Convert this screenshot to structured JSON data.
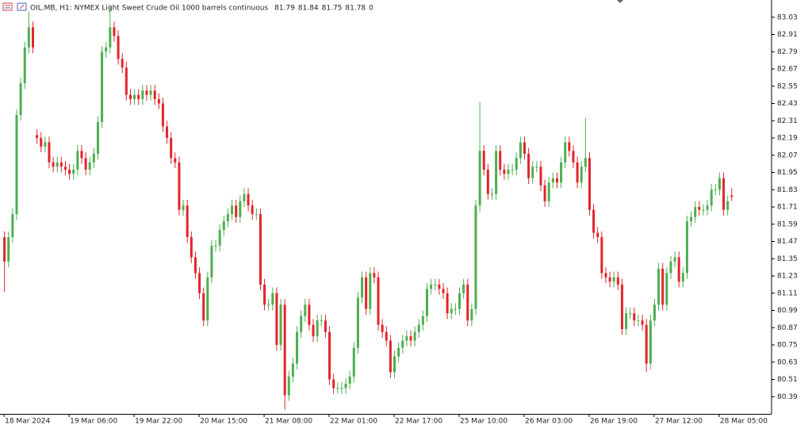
{
  "chart_data": {
    "type": "candlestick",
    "title": "OIL.MB, H1:  NYMEX Light Sweet Crude Oil 1000 barrels continuous",
    "header_values": [
      81.79,
      81.84,
      81.75,
      81.78,
      0
    ],
    "up_color": "#4caf50",
    "down_color": "#e3242b",
    "open": [
      81.5,
      81.33,
      81.5,
      81.66,
      82.35,
      82.57,
      82.82,
      82.96,
      82.21,
      82.19,
      82.13,
      82.16,
      82.02,
      81.99,
      82.02,
      81.99,
      81.97,
      81.94,
      81.97,
      82.1,
      82.05,
      81.97,
      82.02,
      82.08,
      82.3,
      82.79,
      82.82,
      82.96,
      82.9,
      82.74,
      82.68,
      82.49,
      82.46,
      82.49,
      82.46,
      82.52,
      82.49,
      82.52,
      82.46,
      82.43,
      82.27,
      82.19,
      82.05,
      82.02,
      81.69,
      81.72,
      81.5,
      81.36,
      81.25,
      81.11,
      80.92,
      81.22,
      81.44,
      81.44,
      81.55,
      81.61,
      81.66,
      81.72,
      81.64,
      81.75,
      81.8,
      81.72,
      81.66,
      81.66,
      81.17,
      81.03,
      81.03,
      81.11,
      80.75,
      81.03,
      80.4,
      80.53,
      80.62,
      80.84,
      80.95,
      81.03,
      80.89,
      80.81,
      80.92,
      80.92,
      80.84,
      80.51,
      80.45,
      80.45,
      80.45,
      80.48,
      80.53,
      80.73,
      81.08,
      81.22,
      81.0,
      81.25,
      81.22,
      80.89,
      80.84,
      80.78,
      80.56,
      80.67,
      80.73,
      80.78,
      80.81,
      80.78,
      80.84,
      80.89,
      80.95,
      81.14,
      81.17,
      81.17,
      81.14,
      81.11,
      80.97,
      81.0,
      81.0,
      81.11,
      81.17,
      80.92,
      81.0,
      81.72,
      82.1,
      81.97,
      81.8,
      81.8,
      82.1,
      81.97,
      81.94,
      81.97,
      81.97,
      82.05,
      82.16,
      82.08,
      81.91,
      81.99,
      81.99,
      81.86,
      81.75,
      81.88,
      81.91,
      81.88,
      82.02,
      82.16,
      82.1,
      82.02,
      81.88,
      81.99,
      82.05,
      81.69,
      81.53,
      81.5,
      81.25,
      81.22,
      81.19,
      81.22,
      81.17,
      80.86,
      80.97,
      80.97,
      80.92,
      80.92,
      80.89,
      80.62,
      80.92,
      81.03,
      81.28,
      81.03,
      81.25,
      81.33,
      81.36,
      81.19,
      81.25,
      81.61,
      81.64,
      81.71,
      81.69,
      81.69,
      81.72,
      81.83,
      81.83,
      81.91,
      81.69,
      81.79
    ],
    "high": [
      81.54,
      81.54,
      81.7,
      82.39,
      82.61,
      82.86,
      83.07,
      83.0,
      82.25,
      82.23,
      82.2,
      82.2,
      82.06,
      82.06,
      82.06,
      82.03,
      82.01,
      82.01,
      82.14,
      82.14,
      82.09,
      82.06,
      82.12,
      82.34,
      82.83,
      82.86,
      83.12,
      83.0,
      82.94,
      82.78,
      82.72,
      82.53,
      82.53,
      82.53,
      82.56,
      82.56,
      82.56,
      82.56,
      82.5,
      82.47,
      82.31,
      82.23,
      82.09,
      82.06,
      81.76,
      81.76,
      81.54,
      81.4,
      81.29,
      81.15,
      81.26,
      81.48,
      81.48,
      81.59,
      81.65,
      81.7,
      81.76,
      81.76,
      81.79,
      81.84,
      81.84,
      81.76,
      81.7,
      81.7,
      81.21,
      81.07,
      81.15,
      81.15,
      81.07,
      81.07,
      80.57,
      80.66,
      80.88,
      80.99,
      81.07,
      81.07,
      80.93,
      80.96,
      80.96,
      80.96,
      80.88,
      80.55,
      80.49,
      80.49,
      80.52,
      80.57,
      80.77,
      81.12,
      81.26,
      81.26,
      81.29,
      81.29,
      81.26,
      80.93,
      80.88,
      80.82,
      80.71,
      80.77,
      80.82,
      80.85,
      80.85,
      80.88,
      80.93,
      80.99,
      81.18,
      81.21,
      81.21,
      81.21,
      81.18,
      81.15,
      81.04,
      81.04,
      81.15,
      81.21,
      81.21,
      81.04,
      81.76,
      82.44,
      82.14,
      82.01,
      81.84,
      82.14,
      82.14,
      82.01,
      82.01,
      82.01,
      82.09,
      82.2,
      82.2,
      82.12,
      82.03,
      82.03,
      82.03,
      81.9,
      81.92,
      81.95,
      81.95,
      82.06,
      82.2,
      82.2,
      82.14,
      82.06,
      82.03,
      82.33,
      82.09,
      81.73,
      81.57,
      81.54,
      81.29,
      81.26,
      81.26,
      81.26,
      81.21,
      81.01,
      81.01,
      81.01,
      80.96,
      80.96,
      80.93,
      80.96,
      81.07,
      81.32,
      81.32,
      81.29,
      81.37,
      81.4,
      81.4,
      81.29,
      81.65,
      81.68,
      81.75,
      81.75,
      81.73,
      81.76,
      81.87,
      81.87,
      81.95,
      81.95,
      81.79,
      81.84
    ],
    "low": [
      81.12,
      81.29,
      81.46,
      81.62,
      82.31,
      82.53,
      82.78,
      82.78,
      82.15,
      82.09,
      82.09,
      81.98,
      81.95,
      81.95,
      81.95,
      81.93,
      81.9,
      81.9,
      81.93,
      82.01,
      81.93,
      81.93,
      81.98,
      82.04,
      82.26,
      82.75,
      82.78,
      82.86,
      82.7,
      82.64,
      82.45,
      82.42,
      82.42,
      82.42,
      82.42,
      82.45,
      82.45,
      82.42,
      82.39,
      82.23,
      82.15,
      82.01,
      81.98,
      81.65,
      81.65,
      81.46,
      81.32,
      81.21,
      81.07,
      80.88,
      80.88,
      81.18,
      81.4,
      81.4,
      81.51,
      81.57,
      81.62,
      81.6,
      81.6,
      81.71,
      81.68,
      81.62,
      81.62,
      81.13,
      80.99,
      80.99,
      80.99,
      80.71,
      80.71,
      80.3,
      80.36,
      80.49,
      80.58,
      80.8,
      80.91,
      80.85,
      80.77,
      80.77,
      80.88,
      80.8,
      80.47,
      80.41,
      80.41,
      80.41,
      80.41,
      80.44,
      80.49,
      80.69,
      81.04,
      80.96,
      80.96,
      81.18,
      80.85,
      80.8,
      80.74,
      80.52,
      80.52,
      80.63,
      80.69,
      80.74,
      80.74,
      80.74,
      80.8,
      80.85,
      80.91,
      81.1,
      81.13,
      81.1,
      81.07,
      80.93,
      80.93,
      80.96,
      80.96,
      81.07,
      80.88,
      80.88,
      80.96,
      81.68,
      81.93,
      81.76,
      81.76,
      81.76,
      81.93,
      81.9,
      81.9,
      81.93,
      81.93,
      82.01,
      82.04,
      81.87,
      81.87,
      81.95,
      81.82,
      81.71,
      81.71,
      81.84,
      81.84,
      81.84,
      81.98,
      82.06,
      81.98,
      81.84,
      81.84,
      81.95,
      81.65,
      81.49,
      81.46,
      81.21,
      81.18,
      81.15,
      81.15,
      81.13,
      80.82,
      80.82,
      80.93,
      80.88,
      80.88,
      80.85,
      80.56,
      80.58,
      80.88,
      80.99,
      80.99,
      80.99,
      81.21,
      81.29,
      81.15,
      81.15,
      81.21,
      81.57,
      81.6,
      81.65,
      81.65,
      81.65,
      81.68,
      81.79,
      81.79,
      81.65,
      81.65,
      81.75
    ],
    "close": [
      81.33,
      81.5,
      81.66,
      82.35,
      82.57,
      82.82,
      82.96,
      82.82,
      82.19,
      82.13,
      82.16,
      82.02,
      81.99,
      82.02,
      81.99,
      81.97,
      81.94,
      81.97,
      82.1,
      82.05,
      81.97,
      82.02,
      82.08,
      82.3,
      82.79,
      82.82,
      82.96,
      82.9,
      82.74,
      82.68,
      82.49,
      82.46,
      82.49,
      82.46,
      82.52,
      82.49,
      82.52,
      82.46,
      82.43,
      82.27,
      82.19,
      82.05,
      82.02,
      81.69,
      81.72,
      81.5,
      81.36,
      81.25,
      81.11,
      80.92,
      81.22,
      81.44,
      81.44,
      81.55,
      81.61,
      81.66,
      81.72,
      81.64,
      81.75,
      81.8,
      81.72,
      81.66,
      81.66,
      81.17,
      81.03,
      81.03,
      81.11,
      80.75,
      81.03,
      80.4,
      80.53,
      80.62,
      80.84,
      80.95,
      81.03,
      80.89,
      80.81,
      80.92,
      80.92,
      80.84,
      80.51,
      80.45,
      80.45,
      80.45,
      80.48,
      80.53,
      80.73,
      81.08,
      81.22,
      81.0,
      81.25,
      81.22,
      80.89,
      80.84,
      80.78,
      80.56,
      80.67,
      80.73,
      80.78,
      80.81,
      80.78,
      80.84,
      80.89,
      80.95,
      81.14,
      81.17,
      81.17,
      81.14,
      81.11,
      80.97,
      81.0,
      81.0,
      81.11,
      81.17,
      80.92,
      81.0,
      81.72,
      82.1,
      81.97,
      81.8,
      81.8,
      82.1,
      81.97,
      81.94,
      81.97,
      81.97,
      82.05,
      82.16,
      82.08,
      81.91,
      81.99,
      81.99,
      81.86,
      81.75,
      81.88,
      81.91,
      81.88,
      82.02,
      82.16,
      82.1,
      82.02,
      81.88,
      81.99,
      82.05,
      81.69,
      81.53,
      81.5,
      81.25,
      81.22,
      81.19,
      81.22,
      81.17,
      80.86,
      80.97,
      80.97,
      80.92,
      80.92,
      80.89,
      80.62,
      80.92,
      81.03,
      81.28,
      81.03,
      81.25,
      81.33,
      81.36,
      81.19,
      81.25,
      81.61,
      81.64,
      81.71,
      81.69,
      81.69,
      81.72,
      81.83,
      81.83,
      81.91,
      81.69,
      81.75,
      81.78
    ],
    "xlim": [
      -1,
      188.7
    ],
    "xticks": [
      {
        "value": 0,
        "label": "18 Mar 2024"
      },
      {
        "value": 16,
        "label": "19 Mar 06:00"
      },
      {
        "value": 32,
        "label": "19 Mar 22:00"
      },
      {
        "value": 48,
        "label": "20 Mar 15:00"
      },
      {
        "value": 64,
        "label": "21 Mar 08:00"
      },
      {
        "value": 80,
        "label": "22 Mar 01:00"
      },
      {
        "value": 96,
        "label": "22 Mar 17:00"
      },
      {
        "value": 112,
        "label": "25 Mar 10:00"
      },
      {
        "value": 128,
        "label": "26 Mar 03:00"
      },
      {
        "value": 144,
        "label": "26 Mar 19:00"
      },
      {
        "value": 160,
        "label": "27 Mar 12:00"
      },
      {
        "value": 176,
        "label": "28 Mar 05:00"
      }
    ],
    "ylim": [
      80.27,
      83.15
    ],
    "yticks": [
      83.03,
      82.91,
      82.79,
      82.67,
      82.55,
      82.43,
      82.31,
      82.19,
      82.07,
      81.95,
      81.83,
      81.71,
      81.59,
      81.47,
      81.35,
      81.23,
      81.11,
      80.99,
      80.87,
      80.75,
      80.63,
      80.51,
      80.39
    ]
  }
}
